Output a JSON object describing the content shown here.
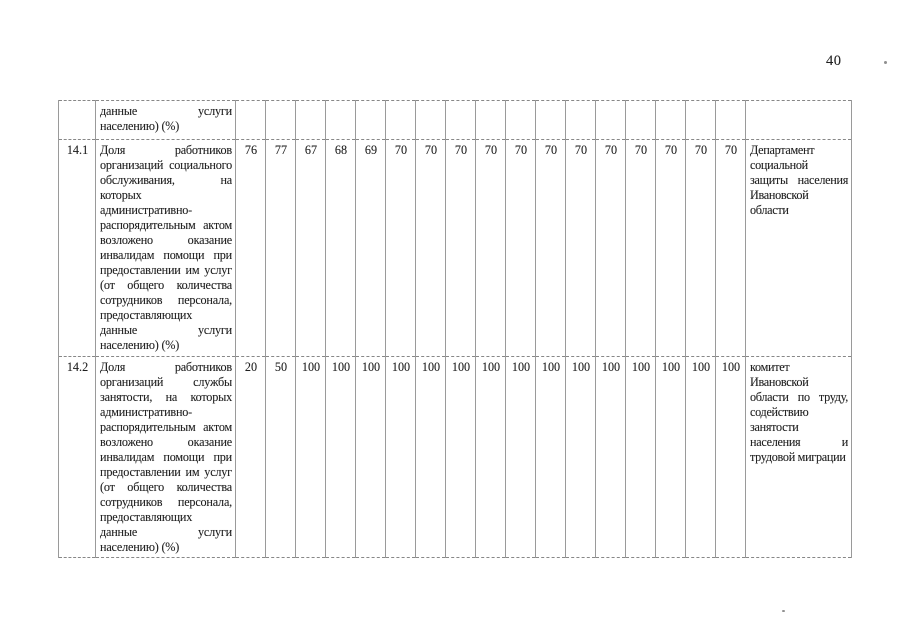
{
  "page": {
    "number": "40"
  },
  "table": {
    "value_column_count": 17,
    "carryover_row": {
      "num": "",
      "description_lines": [
        {
          "t": "данные услуги",
          "j": 1
        },
        {
          "t": "населению) (%)",
          "j": 0
        }
      ],
      "values": [],
      "responsible_lines": []
    },
    "rows": [
      {
        "num": "14.1",
        "description_lines": [
          {
            "t": "Доля работников",
            "j": 1
          },
          {
            "t": "организаций социального",
            "j": 1
          },
          {
            "t": "обслуживания, на",
            "j": 1
          },
          {
            "t": "которых",
            "j": 0
          },
          {
            "t": "административно-",
            "j": 0
          },
          {
            "t": "распорядительным актом",
            "j": 1
          },
          {
            "t": "возложено оказание",
            "j": 1
          },
          {
            "t": "инвалидам помощи при",
            "j": 1
          },
          {
            "t": "предоставлении им услуг",
            "j": 1
          },
          {
            "t": "(от общего количества",
            "j": 1
          },
          {
            "t": "сотрудников персонала,",
            "j": 1
          },
          {
            "t": "предоставляющих",
            "j": 0
          },
          {
            "t": "данные услуги",
            "j": 1
          },
          {
            "t": "населению) (%)",
            "j": 0
          }
        ],
        "values": [
          "76",
          "77",
          "67",
          "68",
          "69",
          "70",
          "70",
          "70",
          "70",
          "70",
          "70",
          "70",
          "70",
          "70",
          "70",
          "70",
          "70"
        ],
        "responsible_lines": [
          {
            "t": "Департамент",
            "j": 0
          },
          {
            "t": "социальной",
            "j": 0
          },
          {
            "t": "защиты населения",
            "j": 1
          },
          {
            "t": "Ивановской",
            "j": 0
          },
          {
            "t": "области",
            "j": 0
          }
        ]
      },
      {
        "num": "14.2",
        "description_lines": [
          {
            "t": "Доля работников",
            "j": 1
          },
          {
            "t": "организаций службы",
            "j": 1
          },
          {
            "t": "занятости, на которых",
            "j": 1
          },
          {
            "t": "административно-",
            "j": 0
          },
          {
            "t": "распорядительным актом",
            "j": 1
          },
          {
            "t": "возложено оказание",
            "j": 1
          },
          {
            "t": "инвалидам помощи при",
            "j": 1
          },
          {
            "t": "предоставлении им услуг",
            "j": 1
          },
          {
            "t": "(от общего количества",
            "j": 1
          },
          {
            "t": "сотрудников персонала,",
            "j": 1
          },
          {
            "t": "предоставляющих",
            "j": 0
          },
          {
            "t": "данные услуги",
            "j": 1
          },
          {
            "t": "населению) (%)",
            "j": 0
          }
        ],
        "values": [
          "20",
          "50",
          "100",
          "100",
          "100",
          "100",
          "100",
          "100",
          "100",
          "100",
          "100",
          "100",
          "100",
          "100",
          "100",
          "100",
          "100"
        ],
        "responsible_lines": [
          {
            "t": "комитет",
            "j": 0
          },
          {
            "t": "Ивановской",
            "j": 0
          },
          {
            "t": "области по труду,",
            "j": 1
          },
          {
            "t": "содействию",
            "j": 0
          },
          {
            "t": "занятости",
            "j": 0
          },
          {
            "t": "населения и",
            "j": 1
          },
          {
            "t": "трудовой миграции",
            "j": 0
          }
        ]
      }
    ]
  }
}
